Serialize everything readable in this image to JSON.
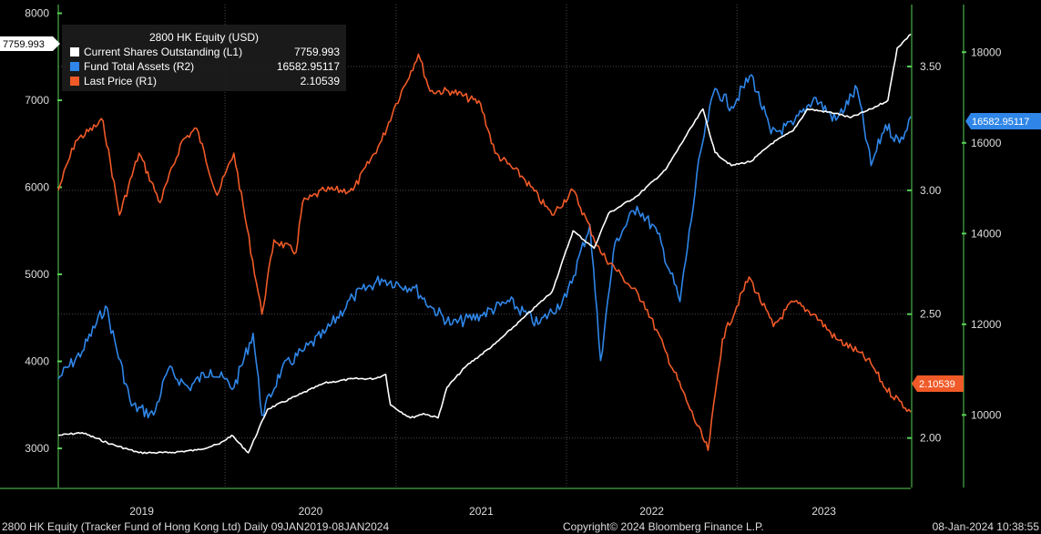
{
  "chart_data": {
    "type": "line",
    "title": "2800 HK Equity (USD)",
    "x_range": [
      "2019-01-09",
      "2024-01-08"
    ],
    "x_tick_labels": [
      "2019",
      "2020",
      "2021",
      "2022",
      "2023"
    ],
    "grid": true,
    "legend_position": "top-left",
    "axes": {
      "L1": {
        "ticks": [
          3000,
          4000,
          5000,
          6000,
          7000,
          8000
        ],
        "range": [
          2550,
          8100
        ],
        "color": "#58d058"
      },
      "R1": {
        "ticks": [
          "2.00",
          "2.50",
          "3.00",
          "3.50"
        ],
        "range": [
          1.8,
          3.75
        ],
        "color": "#58d058"
      },
      "R2": {
        "ticks": [
          10000,
          12000,
          14000,
          16000,
          18000
        ],
        "range": [
          8400,
          19050
        ],
        "color": "#58d058"
      }
    },
    "series": [
      {
        "name": "Current Shares Outstanding",
        "axis": "L1",
        "legend_label": "Current Shares Outstanding  (L1)",
        "last_value": "7759.993",
        "color": "#ffffff",
        "x": [
          "2019-01-09",
          "2019-03-01",
          "2019-05-01",
          "2019-07-01",
          "2019-09-01",
          "2019-11-01",
          "2019-12-20",
          "2020-01-15",
          "2020-02-20",
          "2020-04-01",
          "2020-06-01",
          "2020-08-01",
          "2020-10-01",
          "2020-11-15",
          "2020-12-10",
          "2020-12-20",
          "2021-02-01",
          "2021-03-01",
          "2021-04-01",
          "2021-04-20",
          "2021-06-01",
          "2021-08-01",
          "2021-10-01",
          "2021-12-01",
          "2022-01-15",
          "2022-03-01",
          "2022-04-01",
          "2022-06-01",
          "2022-08-01",
          "2022-09-15",
          "2022-10-20",
          "2022-11-15",
          "2022-12-20",
          "2023-02-01",
          "2023-03-15",
          "2023-05-01",
          "2023-06-01",
          "2023-08-01",
          "2023-09-01",
          "2023-10-15",
          "2023-11-20",
          "2023-12-10",
          "2024-01-08"
        ],
        "values": [
          3150,
          3180,
          3050,
          2950,
          2950,
          2980,
          3050,
          3150,
          2950,
          3450,
          3600,
          3750,
          3800,
          3800,
          3850,
          3500,
          3350,
          3400,
          3350,
          3700,
          3950,
          4200,
          4500,
          4800,
          5500,
          5300,
          5700,
          5900,
          6200,
          6600,
          6900,
          6400,
          6250,
          6300,
          6500,
          6650,
          6900,
          6850,
          6800,
          6900,
          7000,
          7600,
          7760
        ]
      },
      {
        "name": "Fund Total Assets",
        "axis": "R2",
        "legend_label": "Fund Total Assets  (R2)",
        "last_value": "16582.95117",
        "color": "#2f86e8",
        "x": [
          "2019-01-09",
          "2019-03-01",
          "2019-04-20",
          "2019-06-15",
          "2019-08-01",
          "2019-09-01",
          "2019-10-15",
          "2019-12-01",
          "2020-01-20",
          "2020-03-01",
          "2020-03-20",
          "2020-05-01",
          "2020-06-15",
          "2020-08-01",
          "2020-10-01",
          "2020-12-01",
          "2021-02-10",
          "2021-03-15",
          "2021-05-01",
          "2021-07-01",
          "2021-09-01",
          "2021-11-01",
          "2022-01-01",
          "2022-02-20",
          "2022-03-15",
          "2022-04-15",
          "2022-06-01",
          "2022-07-15",
          "2022-09-01",
          "2022-10-15",
          "2022-11-15",
          "2022-12-20",
          "2023-02-01",
          "2023-03-15",
          "2023-05-01",
          "2023-06-15",
          "2023-08-01",
          "2023-09-15",
          "2023-10-15",
          "2023-11-15",
          "2023-12-15",
          "2024-01-08"
        ],
        "values": [
          10800,
          11400,
          12400,
          10200,
          10000,
          11000,
          10600,
          11000,
          10600,
          11800,
          10000,
          11000,
          11400,
          11800,
          12600,
          13000,
          12800,
          12400,
          12000,
          12200,
          12500,
          12000,
          12600,
          14200,
          11200,
          13800,
          14600,
          14000,
          12500,
          15800,
          17200,
          16800,
          17500,
          16200,
          16400,
          17000,
          16500,
          17200,
          15500,
          16400,
          16000,
          16583
        ]
      },
      {
        "name": "Last Price",
        "axis": "R1",
        "legend_label": "Last Price  (R1)",
        "last_value": "2.10539",
        "color": "#f05a28",
        "x": [
          "2019-01-09",
          "2019-02-15",
          "2019-04-15",
          "2019-05-20",
          "2019-07-01",
          "2019-08-15",
          "2019-10-01",
          "2019-11-01",
          "2019-12-15",
          "2020-01-20",
          "2020-03-20",
          "2020-04-15",
          "2020-06-01",
          "2020-06-15",
          "2020-08-01",
          "2020-10-01",
          "2020-12-01",
          "2021-01-01",
          "2021-02-18",
          "2021-03-15",
          "2021-05-01",
          "2021-07-01",
          "2021-08-01",
          "2021-10-01",
          "2021-12-01",
          "2022-01-15",
          "2022-03-15",
          "2022-05-01",
          "2022-06-15",
          "2022-08-01",
          "2022-09-15",
          "2022-10-31",
          "2022-12-01",
          "2023-01-27",
          "2023-03-20",
          "2023-05-01",
          "2023-06-15",
          "2023-08-01",
          "2023-09-15",
          "2023-10-15",
          "2023-11-15",
          "2023-12-15",
          "2024-01-08"
        ],
        "values": [
          3.0,
          3.2,
          3.28,
          2.9,
          3.15,
          2.95,
          3.2,
          3.25,
          2.98,
          3.15,
          2.5,
          2.8,
          2.75,
          2.95,
          3.0,
          3.0,
          3.2,
          3.35,
          3.55,
          3.4,
          3.4,
          3.35,
          3.15,
          3.05,
          2.9,
          3.0,
          2.75,
          2.65,
          2.55,
          2.35,
          2.15,
          1.95,
          2.4,
          2.65,
          2.45,
          2.55,
          2.5,
          2.4,
          2.35,
          2.3,
          2.2,
          2.15,
          2.105
        ]
      }
    ]
  },
  "legend": {
    "title": "2800 HK Equity (USD)",
    "items": [
      {
        "label": "Current Shares Outstanding  (L1)",
        "value": "7759.993",
        "color": "#ffffff"
      },
      {
        "label": "Fund Total Assets  (R2)",
        "value": "16582.95117",
        "color": "#2f86e8"
      },
      {
        "label": "Last Price  (R1)",
        "value": "2.10539",
        "color": "#f05a28"
      }
    ]
  },
  "value_tags": {
    "left": "7759.993",
    "right_r2": "16582.95117",
    "right_r1": "2.10539"
  },
  "footer": {
    "left": "2800 HK Equity (Tracker Fund of Hong Kong Ltd)  Daily 09JAN2019-08JAN2024",
    "center": "Copyright© 2024 Bloomberg Finance L.P.",
    "right": "08-Jan-2024 10:38:55"
  }
}
